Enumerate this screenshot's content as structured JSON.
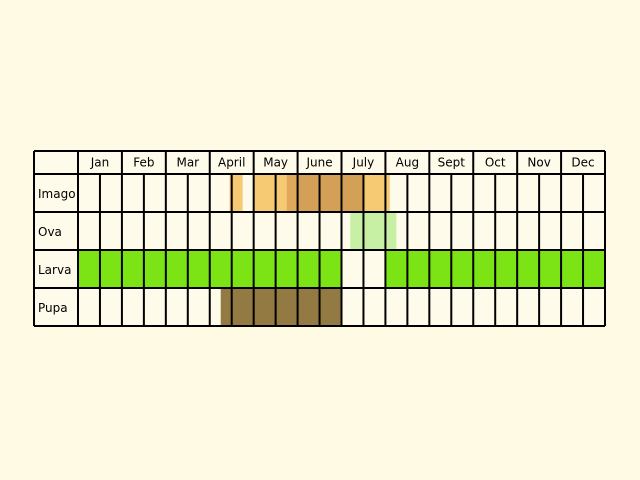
{
  "chart_data": {
    "type": "table",
    "title": "",
    "months": [
      "Jan",
      "Feb",
      "Mar",
      "April",
      "May",
      "June",
      "July",
      "Aug",
      "Sept",
      "Oct",
      "Nov",
      "Dec"
    ],
    "stages": [
      {
        "name": "Imago",
        "periods": [
          {
            "start": 3.45,
            "end": 3.75,
            "color": "#f5ca72"
          },
          {
            "start": 4.0,
            "end": 4.75,
            "color": "#f5ca72"
          },
          {
            "start": 4.75,
            "end": 5.0,
            "color": "#dfa85a"
          },
          {
            "start": 5.0,
            "end": 6.5,
            "color": "#d49f56"
          },
          {
            "start": 6.5,
            "end": 7.1,
            "color": "#f5ca72"
          }
        ]
      },
      {
        "name": "Ova",
        "periods": [
          {
            "start": 6.2,
            "end": 7.25,
            "color": "#c7f0a4"
          }
        ]
      },
      {
        "name": "Larva",
        "periods": [
          {
            "start": 0.0,
            "end": 6.0,
            "color": "#7ce415"
          },
          {
            "start": 7.0,
            "end": 12.0,
            "color": "#7ce415"
          }
        ]
      },
      {
        "name": "Pupa",
        "periods": [
          {
            "start": 3.25,
            "end": 6.0,
            "color": "#937a42"
          }
        ]
      }
    ],
    "cell_background": "#fefbeb",
    "grid_color": "#000000"
  }
}
